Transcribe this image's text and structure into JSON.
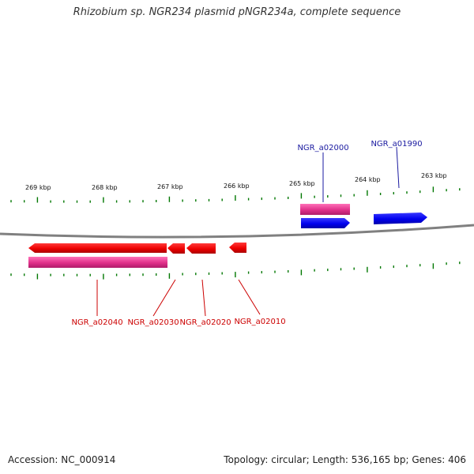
{
  "title": "Rhizobium sp. NGR234 plasmid pNGR234a, complete sequence",
  "footer": {
    "accession": "Accession: NC_000914",
    "summary": "Topology: circular; Length: 536,165 bp; Genes: 406"
  },
  "scale": {
    "labels": [
      "269 kbp",
      "268 kbp",
      "267 kbp",
      "266 kbp",
      "265 kbp",
      "264 kbp",
      "263 kbp"
    ]
  },
  "genes": {
    "forward": [
      {
        "name": "NGR_a02000",
        "color": "#1a1aa0"
      },
      {
        "name": "NGR_a01990",
        "color": "#1a1aa0"
      }
    ],
    "reverse": [
      {
        "name": "NGR_a02040",
        "color": "#cc0000"
      },
      {
        "name": "NGR_a02030",
        "color": "#cc0000"
      },
      {
        "name": "NGR_a02020",
        "color": "#cc0000"
      },
      {
        "name": "NGR_a02010",
        "color": "#cc0000"
      }
    ]
  },
  "colors": {
    "forward_gene": "#0000ee",
    "reverse_gene": "#ee0000",
    "feature_block": "#e0308a",
    "tick": "#007700",
    "backbone": "#808080"
  }
}
